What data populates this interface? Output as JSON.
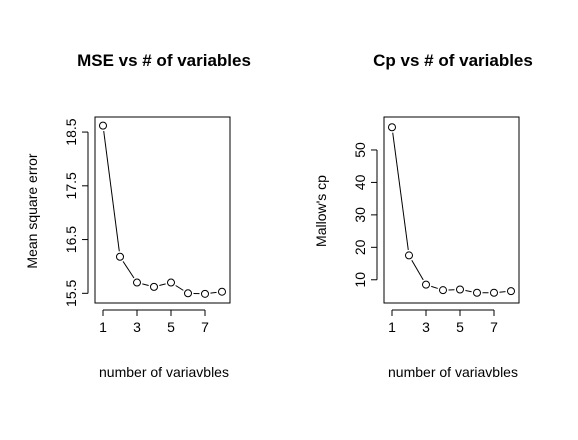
{
  "chart_data": [
    {
      "type": "line",
      "title": "MSE vs # of variables",
      "xlabel": "number of variavbles",
      "ylabel": "Mean square error",
      "x": [
        1,
        2,
        3,
        4,
        5,
        6,
        7,
        8
      ],
      "y": [
        18.62,
        16.18,
        15.7,
        15.62,
        15.7,
        15.5,
        15.49,
        15.53
      ],
      "xlim": [
        1,
        8
      ],
      "ylim": [
        15.45,
        18.65
      ],
      "xticks": [
        1,
        3,
        5,
        7
      ],
      "xtick_labels": [
        "1",
        "3",
        "5",
        "7"
      ],
      "yticks": [
        15.5,
        16.5,
        17.5,
        18.5
      ],
      "ytick_labels": [
        "15.5",
        "16.5",
        "17.5",
        "18.5"
      ],
      "grid": false
    },
    {
      "type": "line",
      "title": "Cp vs # of variables",
      "xlabel": "number of variavbles",
      "ylabel": "Mallow's cp",
      "x": [
        1,
        2,
        3,
        4,
        5,
        6,
        7,
        8
      ],
      "y": [
        57,
        17.5,
        8.5,
        6.8,
        7.0,
        6.0,
        6.0,
        6.5
      ],
      "xlim": [
        1,
        8
      ],
      "ylim": [
        5,
        58
      ],
      "xticks": [
        1,
        3,
        5,
        7
      ],
      "xtick_labels": [
        "1",
        "3",
        "5",
        "7"
      ],
      "yticks": [
        10,
        20,
        30,
        40,
        50
      ],
      "ytick_labels": [
        "10",
        "20",
        "30",
        "40",
        "50"
      ],
      "grid": false
    }
  ]
}
